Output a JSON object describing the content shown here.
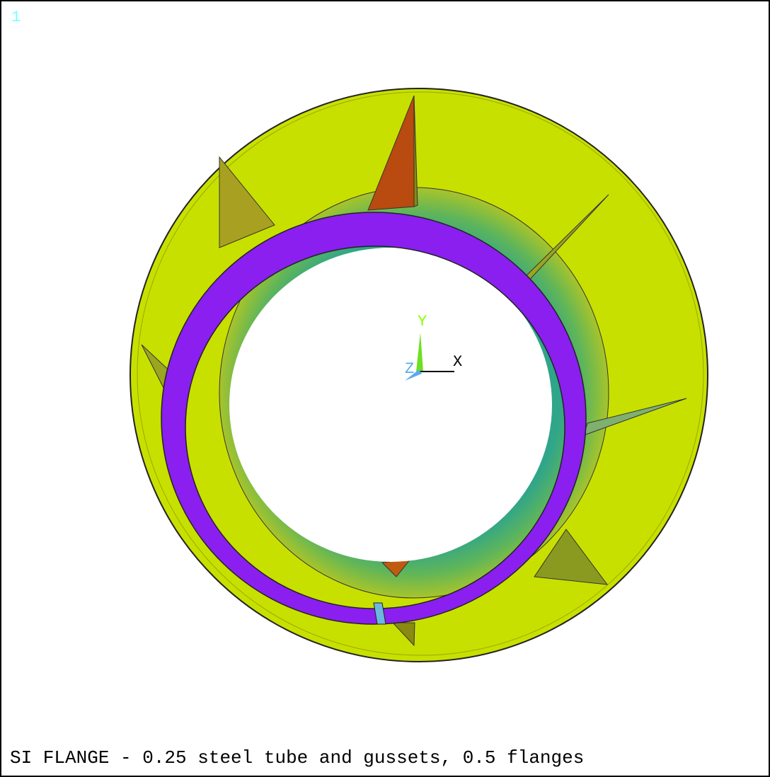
{
  "window": {
    "number": "1"
  },
  "triad": {
    "y_label": "Y",
    "x_label": "X",
    "z_label": "Z"
  },
  "caption": "SI FLANGE - 0.25 steel tube and gussets, 0.5 flanges"
}
